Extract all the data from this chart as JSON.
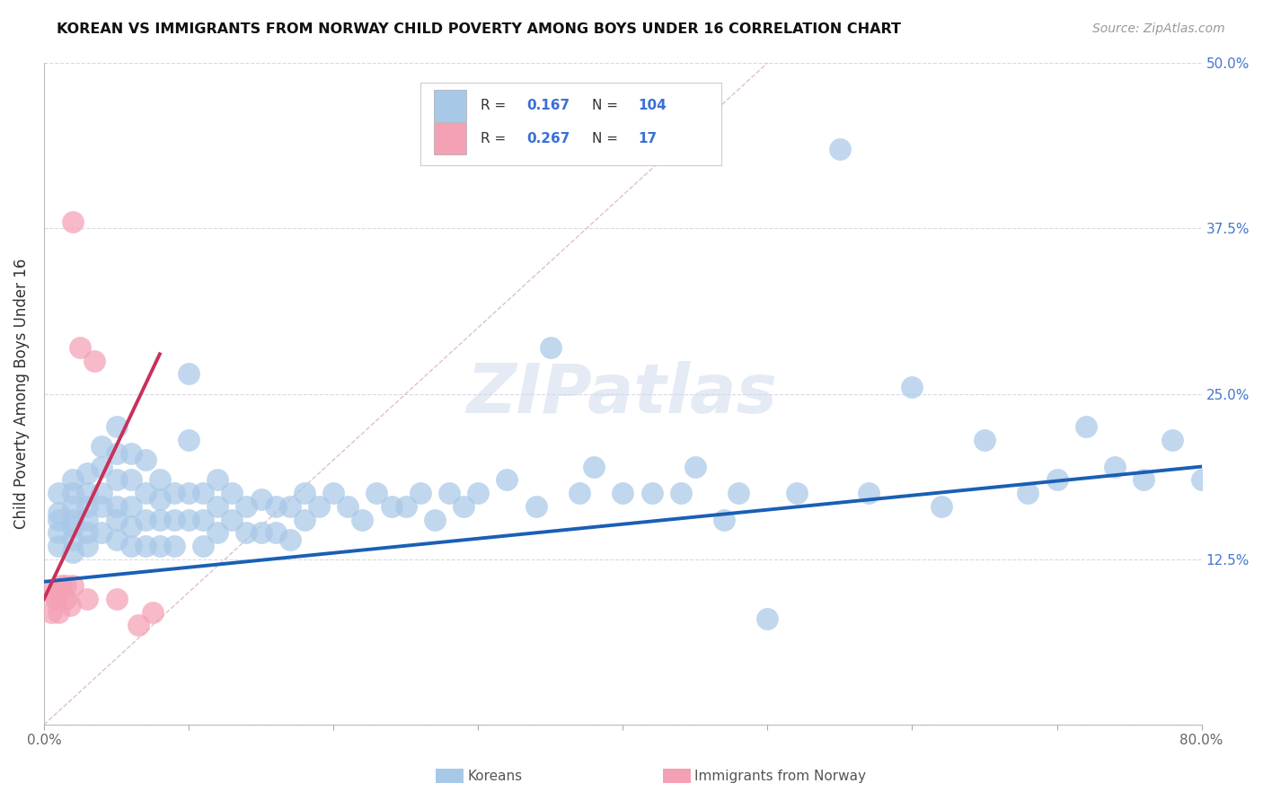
{
  "title": "KOREAN VS IMMIGRANTS FROM NORWAY CHILD POVERTY AMONG BOYS UNDER 16 CORRELATION CHART",
  "source": "Source: ZipAtlas.com",
  "ylabel": "Child Poverty Among Boys Under 16",
  "xlim": [
    0,
    0.8
  ],
  "ylim": [
    0,
    0.5
  ],
  "korean_color": "#a8c8e8",
  "norway_color": "#f4a0b5",
  "korean_trend_color": "#1a5fb4",
  "norway_trend_color": "#c8305a",
  "ref_line_color": "#e0c0c8",
  "background_color": "#ffffff",
  "grid_color": "#d8d8e8",
  "watermark": "ZIPatlas",
  "korean_x": [
    0.01,
    0.01,
    0.01,
    0.01,
    0.01,
    0.02,
    0.02,
    0.02,
    0.02,
    0.02,
    0.02,
    0.02,
    0.03,
    0.03,
    0.03,
    0.03,
    0.03,
    0.03,
    0.04,
    0.04,
    0.04,
    0.04,
    0.04,
    0.05,
    0.05,
    0.05,
    0.05,
    0.05,
    0.05,
    0.06,
    0.06,
    0.06,
    0.06,
    0.06,
    0.07,
    0.07,
    0.07,
    0.07,
    0.08,
    0.08,
    0.08,
    0.08,
    0.09,
    0.09,
    0.09,
    0.1,
    0.1,
    0.1,
    0.1,
    0.11,
    0.11,
    0.11,
    0.12,
    0.12,
    0.12,
    0.13,
    0.13,
    0.14,
    0.14,
    0.15,
    0.15,
    0.16,
    0.16,
    0.17,
    0.17,
    0.18,
    0.18,
    0.19,
    0.2,
    0.21,
    0.22,
    0.23,
    0.24,
    0.25,
    0.26,
    0.27,
    0.28,
    0.29,
    0.3,
    0.32,
    0.34,
    0.35,
    0.37,
    0.38,
    0.4,
    0.42,
    0.44,
    0.45,
    0.47,
    0.48,
    0.5,
    0.52,
    0.55,
    0.57,
    0.6,
    0.62,
    0.65,
    0.68,
    0.7,
    0.72,
    0.74,
    0.76,
    0.78,
    0.8
  ],
  "korean_y": [
    0.175,
    0.16,
    0.155,
    0.145,
    0.135,
    0.185,
    0.175,
    0.165,
    0.155,
    0.15,
    0.14,
    0.13,
    0.19,
    0.175,
    0.165,
    0.155,
    0.145,
    0.135,
    0.21,
    0.195,
    0.175,
    0.165,
    0.145,
    0.225,
    0.205,
    0.185,
    0.165,
    0.155,
    0.14,
    0.205,
    0.185,
    0.165,
    0.15,
    0.135,
    0.2,
    0.175,
    0.155,
    0.135,
    0.185,
    0.17,
    0.155,
    0.135,
    0.175,
    0.155,
    0.135,
    0.265,
    0.215,
    0.175,
    0.155,
    0.175,
    0.155,
    0.135,
    0.185,
    0.165,
    0.145,
    0.175,
    0.155,
    0.165,
    0.145,
    0.17,
    0.145,
    0.165,
    0.145,
    0.165,
    0.14,
    0.175,
    0.155,
    0.165,
    0.175,
    0.165,
    0.155,
    0.175,
    0.165,
    0.165,
    0.175,
    0.155,
    0.175,
    0.165,
    0.175,
    0.185,
    0.165,
    0.285,
    0.175,
    0.195,
    0.175,
    0.175,
    0.175,
    0.195,
    0.155,
    0.175,
    0.08,
    0.175,
    0.435,
    0.175,
    0.255,
    0.165,
    0.215,
    0.175,
    0.185,
    0.225,
    0.195,
    0.185,
    0.215,
    0.185
  ],
  "norway_x": [
    0.005,
    0.005,
    0.008,
    0.01,
    0.01,
    0.012,
    0.015,
    0.015,
    0.018,
    0.02,
    0.02,
    0.025,
    0.03,
    0.035,
    0.05,
    0.065,
    0.075
  ],
  "norway_y": [
    0.1,
    0.085,
    0.095,
    0.1,
    0.085,
    0.105,
    0.095,
    0.105,
    0.09,
    0.38,
    0.105,
    0.285,
    0.095,
    0.275,
    0.095,
    0.075,
    0.085
  ],
  "korean_trend_x": [
    0.0,
    0.8
  ],
  "korean_trend_y": [
    0.108,
    0.195
  ],
  "norway_trend_x": [
    0.0,
    0.08
  ],
  "norway_trend_y": [
    0.095,
    0.28
  ],
  "ref_line_x": [
    0.0,
    0.5
  ],
  "ref_line_y": [
    0.0,
    0.5
  ]
}
